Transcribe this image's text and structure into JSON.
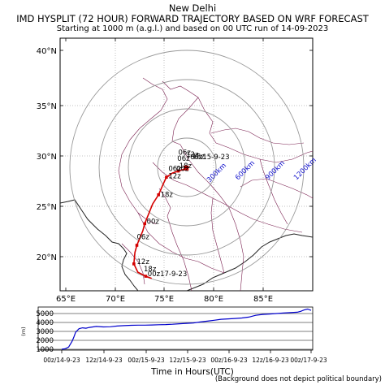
{
  "header": {
    "city": "New Delhi",
    "title": "IMD HYSPLIT (72 HOUR) FORWARD TRAJECTORY BASED ON WRF FORECAST",
    "subtitle": "Starting at 1000 m (a.g.l.) and based on 00 UTC run of 14-09-2023"
  },
  "map": {
    "lon_ticks": [
      "65°E",
      "70°E",
      "75°E",
      "80°E",
      "85°E"
    ],
    "lat_ticks": [
      "40°N",
      "35°N",
      "30°N",
      "25°N",
      "20°N"
    ],
    "range_rings": [
      "300km",
      "600km",
      "900km",
      "1200km"
    ],
    "ring_label_color": "#1010cc",
    "trajectory_color": "#d40000",
    "origin": {
      "lon": 77.2,
      "lat": 28.6
    },
    "trajectory": [
      {
        "lon": 77.2,
        "lat": 28.6
      },
      {
        "lon": 76.9,
        "lat": 28.45
      },
      {
        "lon": 76.4,
        "lat": 28.3
      },
      {
        "lon": 75.8,
        "lat": 28.1
      },
      {
        "lon": 75.2,
        "lat": 27.7
      },
      {
        "lon": 74.9,
        "lat": 27.1
      },
      {
        "lon": 74.4,
        "lat": 26.0
      },
      {
        "lon": 73.8,
        "lat": 25.1
      },
      {
        "lon": 73.0,
        "lat": 23.2
      },
      {
        "lon": 72.8,
        "lat": 22.5
      },
      {
        "lon": 72.2,
        "lat": 21.1
      },
      {
        "lon": 72.0,
        "lat": 20.4
      },
      {
        "lon": 71.9,
        "lat": 19.3
      },
      {
        "lon": 72.3,
        "lat": 18.5
      },
      {
        "lon": 73.1,
        "lat": 18.1
      },
      {
        "lon": 73.7,
        "lat": 17.9
      }
    ],
    "time_markers": [
      {
        "label": "06z",
        "lon": 76.4,
        "lat": 29.9
      },
      {
        "label": "12z",
        "lon": 77.2,
        "lat": 29.7
      },
      {
        "label": "18z",
        "lon": 77.8,
        "lat": 29.5
      },
      {
        "label": "00z15-9-23",
        "lon": 77.6,
        "lat": 29.45
      },
      {
        "label": "06z",
        "lon": 76.3,
        "lat": 29.3
      },
      {
        "label": "06z",
        "lon": 75.4,
        "lat": 28.3
      },
      {
        "label": "00z",
        "lon": 76.2,
        "lat": 28.3
      },
      {
        "label": "18z",
        "lon": 76.5,
        "lat": 28.6
      },
      {
        "label": "12z",
        "lon": 75.4,
        "lat": 27.6
      },
      {
        "label": "18z",
        "lon": 74.6,
        "lat": 25.8
      },
      {
        "label": "00z",
        "lon": 73.2,
        "lat": 23.2
      },
      {
        "label": "06z",
        "lon": 72.2,
        "lat": 21.7
      },
      {
        "label": "12z",
        "lon": 72.2,
        "lat": 19.3
      },
      {
        "label": "18z",
        "lon": 72.9,
        "lat": 18.6
      },
      {
        "label": "00z17-9-23",
        "lon": 73.3,
        "lat": 18.1
      }
    ]
  },
  "height_panel": {
    "y_unit": "(m)",
    "y_ticks": [
      "5000",
      "4000",
      "3000",
      "2000",
      "1000"
    ],
    "x_ticks": [
      "00z/14-9-23",
      "12z/14-9-23",
      "00z/15-9-23",
      "12z/15-9-23",
      "00z/16-9-23",
      "12z/16-9-23",
      "00z/17-9-23"
    ],
    "line_color": "#0000cc",
    "series": {
      "hours": [
        0,
        1,
        2,
        3,
        3.5,
        4,
        5,
        6,
        7,
        8,
        10,
        12,
        14,
        16,
        18,
        20,
        22,
        24,
        26,
        28,
        30,
        32,
        34,
        36,
        38,
        40,
        42,
        44,
        46,
        48,
        50,
        52,
        54,
        56,
        58,
        60,
        62,
        64,
        66,
        68,
        69,
        70,
        71,
        72
      ],
      "height_m": [
        1000,
        1050,
        1250,
        1900,
        2350,
        2900,
        3300,
        3400,
        3350,
        3450,
        3550,
        3500,
        3520,
        3600,
        3650,
        3680,
        3700,
        3700,
        3720,
        3750,
        3760,
        3800,
        3850,
        3900,
        3950,
        4050,
        4150,
        4250,
        4350,
        4400,
        4450,
        4500,
        4600,
        4800,
        4900,
        4950,
        5000,
        5050,
        5100,
        5150,
        5250,
        5400,
        5500,
        5350
      ]
    }
  },
  "x_axis_title": "Time in Hours(UTC)",
  "footer_note": "(Background does not depict political boundary)"
}
